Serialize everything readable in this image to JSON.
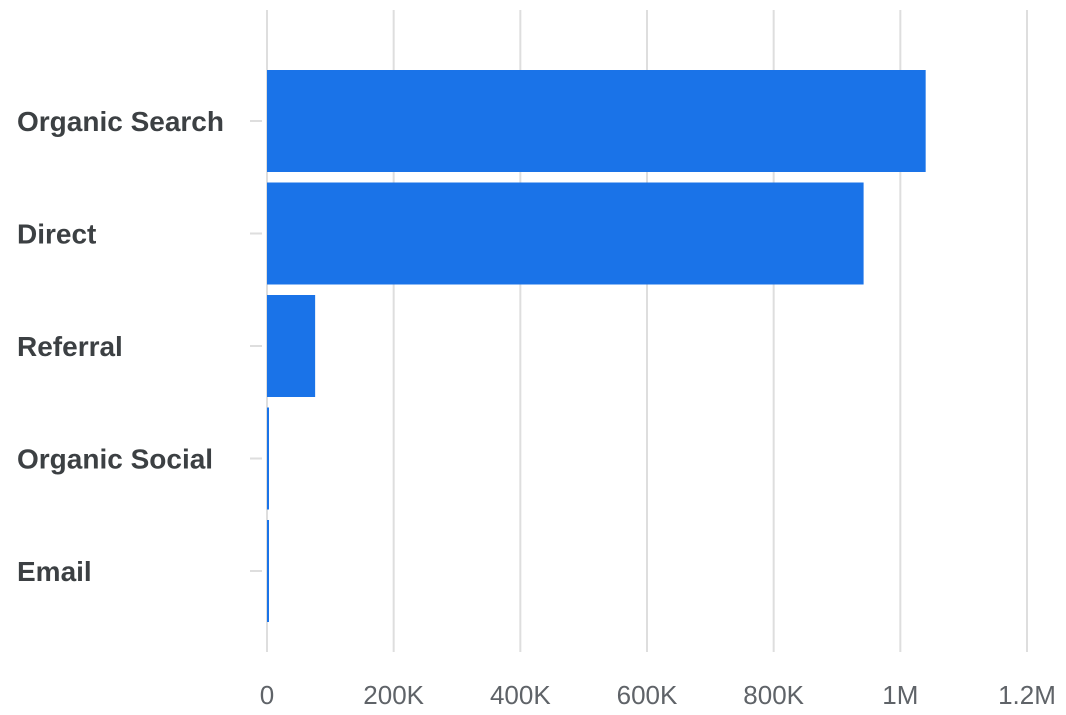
{
  "chart_data": {
    "type": "bar",
    "orientation": "horizontal",
    "categories": [
      "Organic Search",
      "Direct",
      "Referral",
      "Organic Social",
      "Email"
    ],
    "values": [
      1040000,
      942000,
      76000,
      3000,
      2000
    ],
    "xlim": [
      0,
      1200000
    ],
    "x_ticks": [
      0,
      200000,
      400000,
      600000,
      800000,
      1000000,
      1200000
    ],
    "x_tick_labels": [
      "0",
      "200K",
      "400K",
      "600K",
      "800K",
      "1M",
      "1.2M"
    ],
    "title": "",
    "xlabel": "",
    "ylabel": "",
    "grid": true,
    "legend": "none",
    "bar_color": "#1a73e8"
  }
}
